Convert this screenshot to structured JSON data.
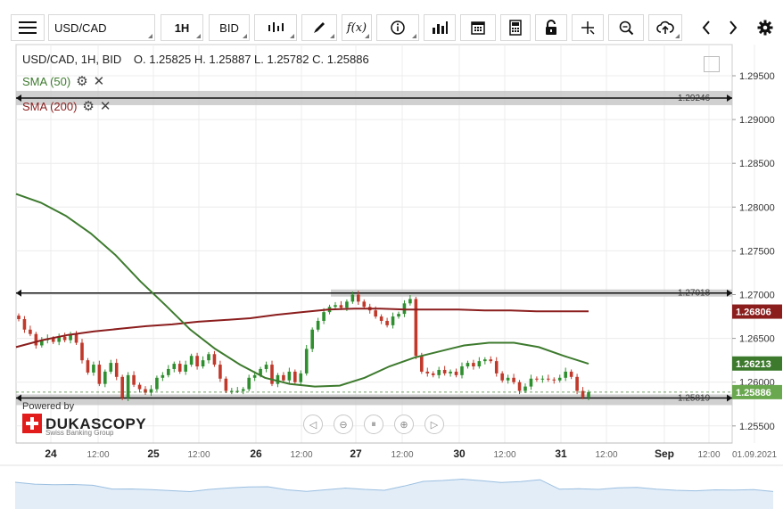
{
  "toolbar": {
    "symbol": "USD/CAD",
    "period": "1H",
    "side": "BID",
    "menu_icon": "hamburger-icon",
    "icons": [
      "candles-icon",
      "draw-icon",
      "formula-icon",
      "info-icon",
      "volume-icon",
      "calendar-icon",
      "calculator-icon",
      "lock-icon",
      "crosshair-icon",
      "zoom-icon",
      "cloud-upload-icon",
      "prev-icon",
      "next-icon",
      "settings-icon"
    ],
    "fx_label": "f(x)"
  },
  "legend": {
    "info": "USD/CAD, 1H, BID",
    "ohlc": "O. 1.25825 H. 1.25887 L. 1.25782 C. 1.25886",
    "sma50": "SMA (50)",
    "sma200": "SMA (200)"
  },
  "branding": {
    "powered": "Powered by",
    "name": "DUKASCOPY",
    "tagline": "Swiss Banking Group"
  },
  "colors": {
    "sma50": "#3d7a2e",
    "sma200": "#8b1d1d",
    "up": "#2f8f2f",
    "down": "#c0392b",
    "last": "#3d7a2e"
  },
  "chart_data": {
    "type": "candlestick",
    "title": "USD/CAD, 1H, BID",
    "ylim": [
      1.2545,
      1.2955
    ],
    "y_ticks": [
      "1.29500",
      "1.29000",
      "1.28500",
      "1.28000",
      "1.27500",
      "1.27000",
      "1.26500",
      "1.26000",
      "1.25500"
    ],
    "x_ticks": [
      "24",
      "12:00",
      "25",
      "12:00",
      "26",
      "12:00",
      "27",
      "12:00",
      "30",
      "12:00",
      "31",
      "12:00",
      "Sep",
      "12:00",
      "01.09.2021"
    ],
    "horizontal_lines": [
      {
        "value": 1.29246,
        "label": "1.29246"
      },
      {
        "value": 1.27018,
        "label": "1.27018"
      },
      {
        "value": 1.25819,
        "label": "1.25819"
      }
    ],
    "price_labels": [
      {
        "value": 1.26806,
        "label": "1.26806",
        "series": "SMA (200)"
      },
      {
        "value": 1.26213,
        "label": "1.26213",
        "series": "SMA (50)"
      },
      {
        "value": 1.25886,
        "label": "1.25886",
        "series": "Last"
      }
    ],
    "last_ohlc": {
      "open": 1.25825,
      "high": 1.25887,
      "low": 1.25782,
      "close": 1.25886
    },
    "closes": [
      1.2672,
      1.266,
      1.2655,
      1.2642,
      1.2648,
      1.265,
      1.2646,
      1.2652,
      1.2648,
      1.2655,
      1.2645,
      1.2625,
      1.2611,
      1.262,
      1.2598,
      1.2612,
      1.2622,
      1.2606,
      1.2582,
      1.2608,
      1.2597,
      1.2592,
      1.2588,
      1.2592,
      1.2605,
      1.2608,
      1.2615,
      1.2621,
      1.2612,
      1.262,
      1.263,
      1.2618,
      1.2625,
      1.2632,
      1.262,
      1.2604,
      1.259,
      1.259,
      1.259,
      1.2592,
      1.2605,
      1.2608,
      1.2615,
      1.262,
      1.2598,
      1.2608,
      1.2602,
      1.2612,
      1.26,
      1.261,
      1.2638,
      1.266,
      1.267,
      1.268,
      1.2686,
      1.2688,
      1.2685,
      1.2692,
      1.27,
      1.2692,
      1.2686,
      1.2682,
      1.2675,
      1.267,
      1.2665,
      1.2675,
      1.2678,
      1.269,
      1.2695,
      1.263,
      1.2612,
      1.261,
      1.2608,
      1.2614,
      1.261,
      1.2612,
      1.2608,
      1.2618,
      1.2622,
      1.2618,
      1.2624,
      1.2626,
      1.2624,
      1.261,
      1.2602,
      1.2605,
      1.26,
      1.259,
      1.2595,
      1.2604,
      1.2603,
      1.2604,
      1.2603,
      1.2602,
      1.2605,
      1.2612,
      1.2606,
      1.259,
      1.2583,
      1.25886
    ],
    "sma50": [
      1.2815,
      1.2805,
      1.279,
      1.277,
      1.2745,
      1.2715,
      1.2688,
      1.266,
      1.2638,
      1.262,
      1.2605,
      1.2598,
      1.2595,
      1.2596,
      1.2605,
      1.2618,
      1.2628,
      1.2635,
      1.2642,
      1.2645,
      1.2645,
      1.264,
      1.263,
      1.2621
    ],
    "sma200": [
      1.264,
      1.2648,
      1.2654,
      1.2658,
      1.2661,
      1.2664,
      1.2666,
      1.2669,
      1.2671,
      1.2673,
      1.2677,
      1.268,
      1.2683,
      1.2684,
      1.2684,
      1.2683,
      1.2683,
      1.2683,
      1.2682,
      1.2682,
      1.2681,
      1.2681,
      1.2681
    ]
  }
}
